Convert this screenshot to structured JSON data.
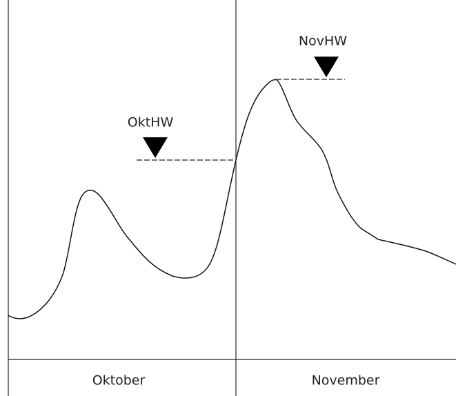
{
  "labels": {
    "oct_high": "OktHW",
    "nov_high": "NovHW"
  },
  "months": [
    "Oktober",
    "November"
  ]
}
